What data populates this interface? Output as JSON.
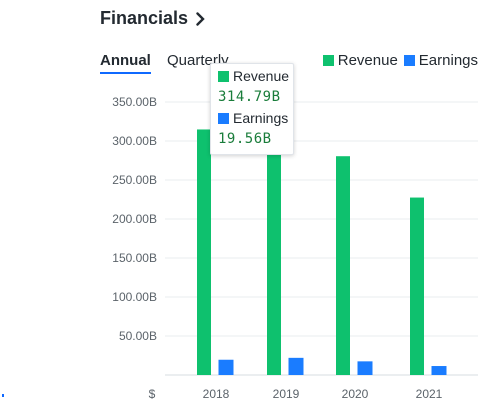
{
  "header": {
    "title": "Financials",
    "chevron_icon": "chevron-right-icon"
  },
  "tabs": [
    {
      "label": "Annual",
      "active": true
    },
    {
      "label": "Quarterly",
      "active": false
    }
  ],
  "colors": {
    "revenue": "#0ec16e",
    "earnings": "#1a7cff",
    "grid": "#e9ecef",
    "accent": "#0f69ff"
  },
  "chart_data": {
    "type": "bar",
    "categories": [
      "2018",
      "2019",
      "2020",
      "2021"
    ],
    "series": [
      {
        "name": "Revenue",
        "values": [
          314.79,
          299.0,
          280.5,
          227.5
        ]
      },
      {
        "name": "Earnings",
        "values": [
          19.56,
          22.0,
          17.5,
          11.5
        ]
      }
    ],
    "y_ticks": [
      "$",
      "50.00B",
      "100.00B",
      "150.00B",
      "200.00B",
      "250.00B",
      "300.00B",
      "350.00B"
    ],
    "ylim": [
      0,
      350
    ],
    "grid": true,
    "legend_position": "top-right",
    "tooltip": {
      "revenue_label": "Revenue",
      "revenue_value": "314.79B",
      "earnings_label": "Earnings",
      "earnings_value": "19.56B"
    }
  }
}
